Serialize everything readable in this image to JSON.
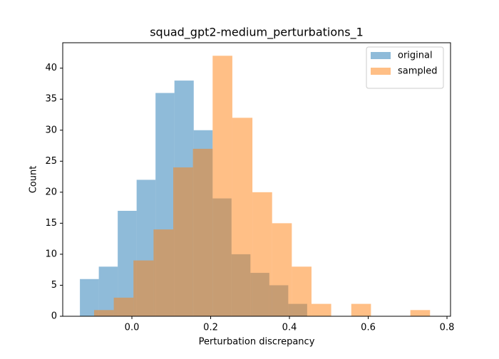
{
  "chart_data": {
    "type": "histogram",
    "title": "squad_gpt2-medium_perturbations_1",
    "x_label": "Perturbation discrepancy",
    "y_label": "Count",
    "series": [
      {
        "name": "original",
        "color": "#1f77b4",
        "opacity": 0.5,
        "bins": [
          -0.132,
          -0.084,
          -0.036,
          0.012,
          0.06,
          0.108,
          0.157,
          0.205,
          0.253,
          0.301,
          0.349,
          0.397,
          0.445
        ],
        "values": [
          6,
          8,
          17,
          22,
          36,
          38,
          30,
          19,
          10,
          7,
          5,
          2
        ]
      },
      {
        "name": "sampled",
        "color": "#ff7f0e",
        "opacity": 0.5,
        "bins": [
          -0.096,
          -0.046,
          0.004,
          0.055,
          0.105,
          0.155,
          0.205,
          0.255,
          0.306,
          0.356,
          0.406,
          0.456,
          0.506,
          0.557,
          0.607,
          0.657,
          0.707,
          0.757
        ],
        "values": [
          1,
          3,
          9,
          14,
          24,
          27,
          42,
          32,
          20,
          15,
          8,
          2,
          0,
          2,
          0,
          0,
          1
        ]
      }
    ],
    "xlim": [
      -0.1756,
      0.809
    ],
    "ylim": [
      0,
      44.1
    ],
    "xticks": [
      {
        "value": 0,
        "label": "0.0"
      },
      {
        "value": 0.2,
        "label": "0.2"
      },
      {
        "value": 0.4,
        "label": "0.4"
      },
      {
        "value": 0.6,
        "label": "0.6"
      },
      {
        "value": 0.8,
        "label": "0.8"
      }
    ],
    "yticks": [
      0,
      5,
      10,
      15,
      20,
      25,
      30,
      35,
      40
    ],
    "legend": "upper-right"
  }
}
